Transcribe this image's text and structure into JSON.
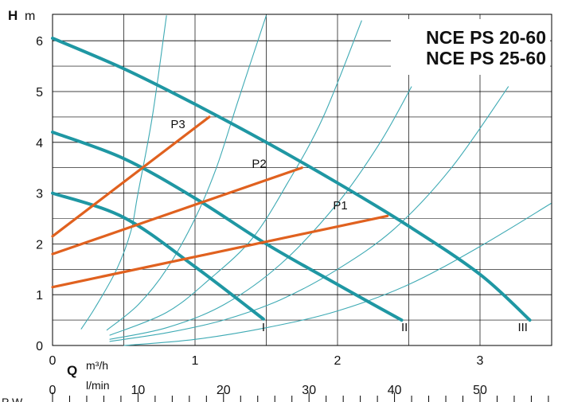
{
  "chart_data": {
    "type": "line",
    "title_lines": [
      "NCE PS 20-60",
      "NCE PS 25-60"
    ],
    "y_axis": {
      "symbol": "H",
      "unit": "m",
      "range": [
        0,
        6.5
      ],
      "ticks": [
        "0",
        "1",
        "2",
        "3",
        "4",
        "5",
        "6"
      ]
    },
    "x_axis": {
      "symbol": "Q",
      "unit": "m³/h",
      "range": [
        0,
        3.5
      ],
      "ticks": [
        "0",
        "1",
        "2",
        "3"
      ]
    },
    "x_axis_2": {
      "unit": "l/min",
      "range": [
        0,
        60
      ],
      "ticks": [
        "0",
        "10",
        "20",
        "30",
        "40",
        "50"
      ]
    },
    "footer_text": "P W",
    "colors": {
      "pump": "#1f97a3",
      "power": "#e0611f",
      "grid": "#000000",
      "system": "#3eaab4"
    },
    "pump_curves": [
      {
        "name": "I",
        "points": [
          [
            0,
            3.0
          ],
          [
            0.5,
            2.52
          ],
          [
            1.0,
            1.55
          ],
          [
            1.48,
            0.52
          ]
        ]
      },
      {
        "name": "II",
        "points": [
          [
            0,
            4.2
          ],
          [
            0.5,
            3.68
          ],
          [
            1.0,
            2.9
          ],
          [
            1.5,
            2.0
          ],
          [
            2.0,
            1.2
          ],
          [
            2.45,
            0.5
          ]
        ]
      },
      {
        "name": "III",
        "points": [
          [
            0,
            6.05
          ],
          [
            0.5,
            5.45
          ],
          [
            1.0,
            4.75
          ],
          [
            1.5,
            4.0
          ],
          [
            2.0,
            3.2
          ],
          [
            2.5,
            2.35
          ],
          [
            3.0,
            1.4
          ],
          [
            3.35,
            0.5
          ]
        ]
      }
    ],
    "power_lines": [
      {
        "name": "P1",
        "points": [
          [
            0,
            1.15
          ],
          [
            2.35,
            2.55
          ]
        ]
      },
      {
        "name": "P2",
        "points": [
          [
            0,
            1.8
          ],
          [
            1.75,
            3.5
          ]
        ]
      },
      {
        "name": "P3",
        "points": [
          [
            0,
            2.15
          ],
          [
            1.1,
            4.5
          ]
        ]
      }
    ],
    "system_curves": [
      {
        "points": [
          [
            0.2,
            0.32
          ],
          [
            0.3,
            0.75
          ],
          [
            0.45,
            1.5
          ],
          [
            0.55,
            2.25
          ],
          [
            0.6,
            3.0
          ],
          [
            0.7,
            4.5
          ],
          [
            0.8,
            6.5
          ]
        ]
      },
      {
        "points": [
          [
            0.38,
            0.3
          ],
          [
            0.6,
            0.8
          ],
          [
            0.8,
            1.5
          ],
          [
            1.0,
            2.5
          ],
          [
            1.15,
            3.5
          ],
          [
            1.3,
            4.8
          ],
          [
            1.5,
            6.5
          ]
        ]
      },
      {
        "points": [
          [
            0.4,
            0.2
          ],
          [
            0.8,
            0.65
          ],
          [
            1.1,
            1.3
          ],
          [
            1.4,
            2.1
          ],
          [
            1.65,
            3.2
          ],
          [
            1.9,
            4.5
          ],
          [
            2.17,
            6.4
          ]
        ]
      },
      {
        "points": [
          [
            0.4,
            0.12
          ],
          [
            0.8,
            0.35
          ],
          [
            1.2,
            0.8
          ],
          [
            1.6,
            1.6
          ],
          [
            2.0,
            2.8
          ],
          [
            2.3,
            4.0
          ],
          [
            2.52,
            5.1
          ]
        ]
      },
      {
        "points": [
          [
            0.4,
            0.08
          ],
          [
            0.8,
            0.25
          ],
          [
            1.2,
            0.5
          ],
          [
            1.6,
            0.9
          ],
          [
            2.0,
            1.5
          ],
          [
            2.4,
            2.3
          ],
          [
            2.8,
            3.5
          ],
          [
            3.2,
            5.1
          ]
        ]
      },
      {
        "points": [
          [
            0.5,
            0.0
          ],
          [
            1.0,
            0.12
          ],
          [
            1.5,
            0.35
          ],
          [
            2.0,
            0.68
          ],
          [
            2.5,
            1.2
          ],
          [
            3.0,
            1.95
          ],
          [
            3.5,
            2.8
          ]
        ]
      }
    ],
    "curve_labels": [
      {
        "text": "I",
        "at": [
          1.48,
          0.28
        ]
      },
      {
        "text": "II",
        "at": [
          2.47,
          0.28
        ]
      },
      {
        "text": "III",
        "at": [
          3.3,
          0.28
        ]
      },
      {
        "text": "P1",
        "at": [
          2.02,
          2.68
        ]
      },
      {
        "text": "P2",
        "at": [
          1.45,
          3.5
        ]
      },
      {
        "text": "P3",
        "at": [
          0.88,
          4.28
        ]
      }
    ]
  }
}
